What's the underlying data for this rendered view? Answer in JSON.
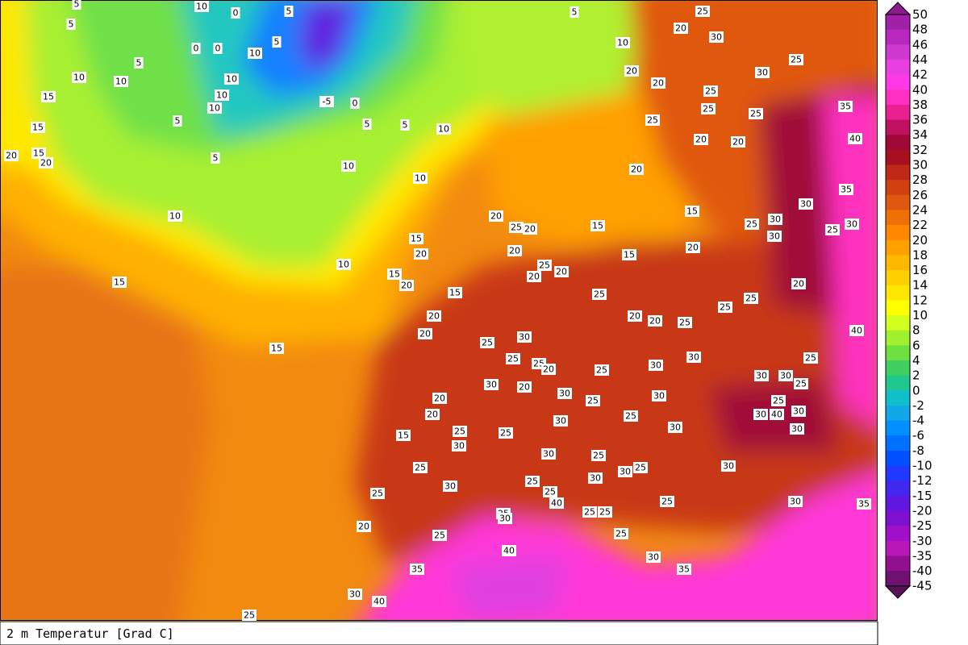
{
  "caption": "2 m Temperatur [Grad C]",
  "colorbar": {
    "labels": [
      "50",
      "48",
      "46",
      "44",
      "42",
      "40",
      "38",
      "36",
      "34",
      "32",
      "30",
      "28",
      "26",
      "24",
      "22",
      "20",
      "18",
      "16",
      "14",
      "12",
      "10",
      "8",
      "6",
      "4",
      "2",
      "0",
      "-2",
      "-4",
      "-6",
      "-8",
      "-10",
      "-12",
      "-15",
      "-20",
      "-25",
      "-30",
      "-35",
      "-40",
      "-45"
    ],
    "colors": [
      "#8a1a8a",
      "#a020a8",
      "#b828c0",
      "#d038d0",
      "#e840e0",
      "#ff38e8",
      "#ff30c0",
      "#e82090",
      "#c01060",
      "#a00838",
      "#a81020",
      "#c02818",
      "#d04010",
      "#e05810",
      "#f07008",
      "#ff8800",
      "#ffa000",
      "#ffb800",
      "#ffd000",
      "#ffe800",
      "#ffff00",
      "#d0ff20",
      "#a0f030",
      "#70e040",
      "#40d060",
      "#20c890",
      "#10c0c8",
      "#10a8e8",
      "#0090ff",
      "#0070ff",
      "#0050ff",
      "#2038ff",
      "#4028f0",
      "#6018e0",
      "#8010d0",
      "#a010c8",
      "#b818b8",
      "#901090",
      "#701070",
      "#581058"
    ]
  },
  "map_labels": [
    "5",
    "10",
    "0",
    "5",
    "0",
    "0",
    "5",
    "10",
    "5",
    "10",
    "10",
    "5",
    "10",
    "10",
    "10",
    "5",
    "5",
    "-5",
    "0",
    "5",
    "5",
    "10",
    "10",
    "10",
    "10",
    "10",
    "15",
    "15",
    "15",
    "15",
    "20",
    "15",
    "20",
    "5",
    "10",
    "20",
    "25",
    "20",
    "30",
    "25",
    "30",
    "25",
    "25",
    "25",
    "35",
    "40",
    "20",
    "25",
    "20",
    "20",
    "20",
    "15",
    "20",
    "25",
    "30",
    "30",
    "30",
    "35",
    "25",
    "30",
    "15",
    "20",
    "15",
    "20",
    "15",
    "20",
    "20",
    "20",
    "25",
    "20",
    "20",
    "25",
    "20",
    "20",
    "25",
    "15",
    "15",
    "20",
    "20",
    "25",
    "25",
    "30",
    "25",
    "25",
    "20",
    "25",
    "30",
    "30",
    "25",
    "25",
    "20",
    "25",
    "30",
    "30",
    "25",
    "40",
    "30",
    "20",
    "30",
    "25",
    "30",
    "25",
    "30",
    "30",
    "40",
    "30",
    "20",
    "20",
    "15",
    "25",
    "30",
    "25",
    "30",
    "30",
    "25",
    "25",
    "30",
    "25",
    "30",
    "25",
    "30",
    "30",
    "25",
    "30",
    "25",
    "25",
    "40",
    "25",
    "25",
    "25",
    "30",
    "35",
    "25",
    "30",
    "20",
    "25",
    "25",
    "40",
    "30",
    "35",
    "35",
    "30",
    "40",
    "25"
  ]
}
